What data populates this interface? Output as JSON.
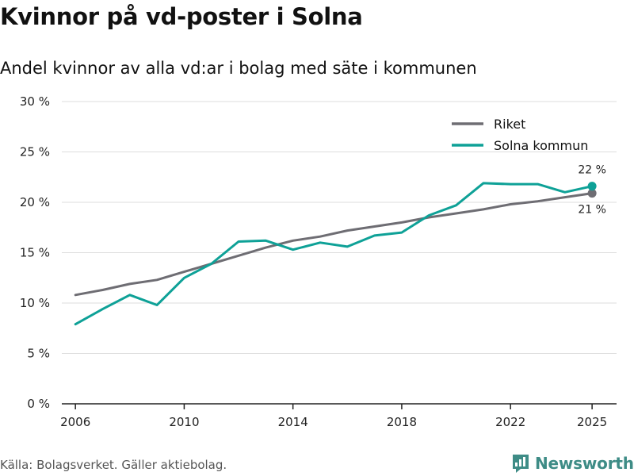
{
  "header": {
    "title": "Kvinnor på vd-poster i Solna",
    "subtitle": "Andel kvinnor av alla vd:ar i bolag med säte i kommunen"
  },
  "footer": {
    "source": "Källa: Bolagsverket. Gäller aktiebolag.",
    "brand": "Newsworthy"
  },
  "colors": {
    "riket": "#6e6d73",
    "solna": "#0ea197",
    "grid": "#dddddd",
    "axis": "#222222"
  },
  "chart_data": {
    "type": "line",
    "title": "Kvinnor på vd-poster i Solna",
    "subtitle": "Andel kvinnor av alla vd:ar i bolag med säte i kommunen",
    "xlabel": "",
    "ylabel": "",
    "xlim": [
      2005.5,
      2025.9
    ],
    "ylim": [
      0,
      30
    ],
    "x_ticks": [
      2006,
      2010,
      2014,
      2018,
      2022,
      2025
    ],
    "y_ticks": [
      0,
      5,
      10,
      15,
      20,
      25,
      30
    ],
    "y_tick_labels": [
      "0 %",
      "5 %",
      "10 %",
      "15 %",
      "20 %",
      "25 %",
      "30 %"
    ],
    "grid": true,
    "legend_position": "top-right",
    "x": [
      2006,
      2007,
      2008,
      2009,
      2010,
      2011,
      2012,
      2013,
      2014,
      2015,
      2016,
      2017,
      2018,
      2019,
      2020,
      2021,
      2022,
      2023,
      2024,
      2025
    ],
    "series": [
      {
        "name": "Riket",
        "color": "#6e6d73",
        "values": [
          10.8,
          11.3,
          11.9,
          12.3,
          13.1,
          13.9,
          14.7,
          15.5,
          16.2,
          16.6,
          17.2,
          17.6,
          18.0,
          18.5,
          18.9,
          19.3,
          19.8,
          20.1,
          20.5,
          20.9
        ],
        "end_label": "21 %"
      },
      {
        "name": "Solna kommun",
        "color": "#0ea197",
        "values": [
          7.9,
          9.4,
          10.8,
          9.8,
          12.5,
          13.9,
          16.1,
          16.2,
          15.3,
          16.0,
          15.6,
          16.7,
          17.0,
          18.7,
          19.7,
          21.9,
          21.8,
          21.8,
          21.0,
          21.6
        ],
        "end_label": "22 %"
      }
    ]
  }
}
